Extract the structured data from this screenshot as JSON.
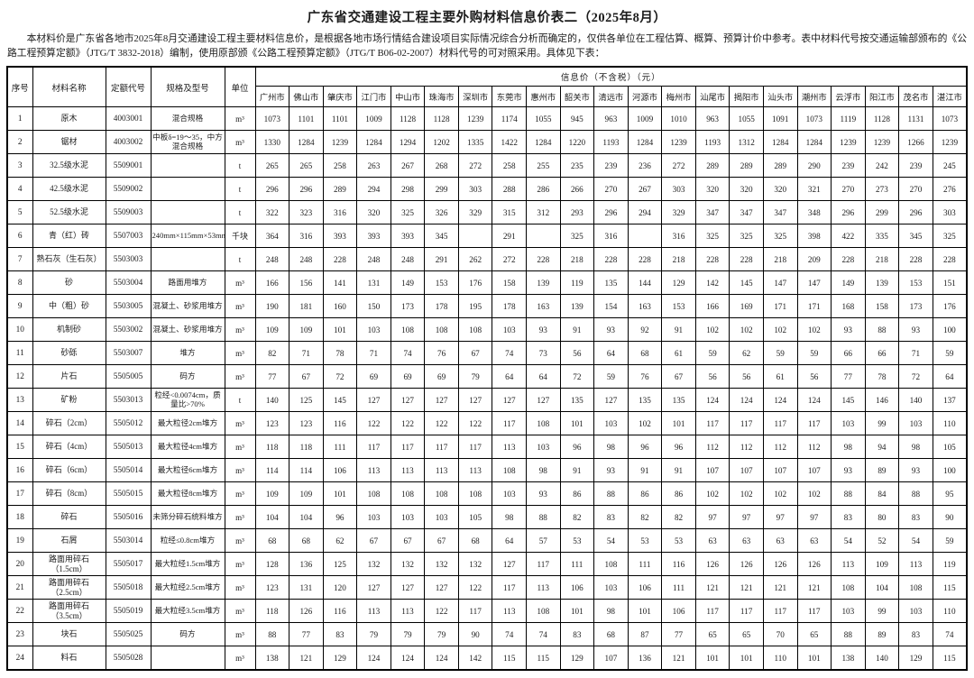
{
  "page": {
    "title": "广东省交通建设工程主要外购材料信息价表二（2025年8月）",
    "intro": "本材料价是广东省各地市2025年8月交通建设工程主要材料信息价，是根据各地市场行情结合建设项目实际情况综合分析而确定的，仅供各单位在工程估算、概算、预算计价中参考。表中材料代号按交通运输部颁布的《公路工程预算定额》（JTG/T 3832-2018）编制，使用原部颁《公路工程预算定额》（JTG/T B06-02-2007）材料代号的可对照采用。具体见下表："
  },
  "table": {
    "headers": {
      "no": "序号",
      "name": "材料名称",
      "code": "定额代号",
      "spec": "规格及型号",
      "unit": "单位",
      "price_group": "信息价（不含税）（元）"
    },
    "cities": [
      "广州市",
      "佛山市",
      "肇庆市",
      "江门市",
      "中山市",
      "珠海市",
      "深圳市",
      "东莞市",
      "惠州市",
      "韶关市",
      "清远市",
      "河源市",
      "梅州市",
      "汕尾市",
      "揭阳市",
      "汕头市",
      "潮州市",
      "云浮市",
      "阳江市",
      "茂名市",
      "湛江市"
    ],
    "rows": [
      {
        "no": "1",
        "name": "原木",
        "code": "4003001",
        "spec": "混合规格",
        "unit": "m³",
        "prices": [
          "1073",
          "1101",
          "1101",
          "1009",
          "1128",
          "1128",
          "1239",
          "1174",
          "1055",
          "945",
          "963",
          "1009",
          "1010",
          "963",
          "1055",
          "1091",
          "1073",
          "1119",
          "1128",
          "1131",
          "1073"
        ]
      },
      {
        "no": "2",
        "name": "锯材",
        "code": "4003002",
        "spec": "中板δ=19～35，中方混合规格",
        "unit": "m³",
        "prices": [
          "1330",
          "1284",
          "1239",
          "1284",
          "1294",
          "1202",
          "1335",
          "1422",
          "1284",
          "1220",
          "1193",
          "1284",
          "1239",
          "1193",
          "1312",
          "1284",
          "1284",
          "1239",
          "1239",
          "1266",
          "1239"
        ]
      },
      {
        "no": "3",
        "name": "32.5级水泥",
        "code": "5509001",
        "spec": "",
        "unit": "t",
        "prices": [
          "265",
          "265",
          "258",
          "263",
          "267",
          "268",
          "272",
          "258",
          "255",
          "235",
          "239",
          "236",
          "272",
          "289",
          "289",
          "289",
          "290",
          "239",
          "242",
          "239",
          "245"
        ]
      },
      {
        "no": "4",
        "name": "42.5级水泥",
        "code": "5509002",
        "spec": "",
        "unit": "t",
        "prices": [
          "296",
          "296",
          "289",
          "294",
          "298",
          "299",
          "303",
          "288",
          "286",
          "266",
          "270",
          "267",
          "303",
          "320",
          "320",
          "320",
          "321",
          "270",
          "273",
          "270",
          "276"
        ]
      },
      {
        "no": "5",
        "name": "52.5级水泥",
        "code": "5509003",
        "spec": "",
        "unit": "t",
        "prices": [
          "322",
          "323",
          "316",
          "320",
          "325",
          "326",
          "329",
          "315",
          "312",
          "293",
          "296",
          "294",
          "329",
          "347",
          "347",
          "347",
          "348",
          "296",
          "299",
          "296",
          "303"
        ]
      },
      {
        "no": "6",
        "name": "青（红）砖",
        "code": "5507003",
        "spec": "240mm×115mm×53mm",
        "unit": "千块",
        "prices": [
          "364",
          "316",
          "393",
          "393",
          "393",
          "345",
          "",
          "291",
          "",
          "325",
          "316",
          "",
          "316",
          "325",
          "325",
          "325",
          "398",
          "422",
          "335",
          "345",
          "325"
        ]
      },
      {
        "no": "7",
        "name": "熟石灰（生石灰）",
        "code": "5503003",
        "spec": "",
        "unit": "t",
        "prices": [
          "248",
          "248",
          "228",
          "248",
          "248",
          "291",
          "262",
          "272",
          "228",
          "218",
          "228",
          "228",
          "218",
          "228",
          "228",
          "218",
          "209",
          "228",
          "218",
          "228",
          "228"
        ]
      },
      {
        "no": "8",
        "name": "砂",
        "code": "5503004",
        "spec": "路面用堆方",
        "unit": "m³",
        "prices": [
          "166",
          "156",
          "141",
          "131",
          "149",
          "153",
          "176",
          "158",
          "139",
          "119",
          "135",
          "144",
          "129",
          "142",
          "145",
          "147",
          "147",
          "149",
          "139",
          "153",
          "151"
        ]
      },
      {
        "no": "9",
        "name": "中（粗）砂",
        "code": "5503005",
        "spec": "混凝土、砂浆用堆方",
        "unit": "m³",
        "prices": [
          "190",
          "181",
          "160",
          "150",
          "173",
          "178",
          "195",
          "178",
          "163",
          "139",
          "154",
          "163",
          "153",
          "166",
          "169",
          "171",
          "171",
          "168",
          "158",
          "173",
          "176"
        ]
      },
      {
        "no": "10",
        "name": "机制砂",
        "code": "5503002",
        "spec": "混凝土、砂浆用堆方",
        "unit": "m³",
        "prices": [
          "109",
          "109",
          "101",
          "103",
          "108",
          "108",
          "108",
          "103",
          "93",
          "91",
          "93",
          "92",
          "91",
          "102",
          "102",
          "102",
          "102",
          "93",
          "88",
          "93",
          "100"
        ]
      },
      {
        "no": "11",
        "name": "砂砾",
        "code": "5503007",
        "spec": "堆方",
        "unit": "m³",
        "prices": [
          "82",
          "71",
          "78",
          "71",
          "74",
          "76",
          "67",
          "74",
          "73",
          "56",
          "64",
          "68",
          "61",
          "59",
          "62",
          "59",
          "59",
          "66",
          "66",
          "71",
          "59"
        ]
      },
      {
        "no": "12",
        "name": "片石",
        "code": "5505005",
        "spec": "码方",
        "unit": "m³",
        "prices": [
          "77",
          "67",
          "72",
          "69",
          "69",
          "69",
          "79",
          "64",
          "64",
          "72",
          "59",
          "76",
          "67",
          "56",
          "56",
          "61",
          "56",
          "77",
          "78",
          "72",
          "64"
        ]
      },
      {
        "no": "13",
        "name": "矿粉",
        "code": "5503013",
        "spec": "粒经<0.0074cm，质量比>70%",
        "unit": "t",
        "prices": [
          "140",
          "125",
          "145",
          "127",
          "127",
          "127",
          "127",
          "127",
          "127",
          "135",
          "127",
          "135",
          "135",
          "124",
          "124",
          "124",
          "124",
          "145",
          "146",
          "140",
          "137"
        ]
      },
      {
        "no": "14",
        "name": "碎石（2cm）",
        "code": "5505012",
        "spec": "最大粒径2cm堆方",
        "unit": "m³",
        "prices": [
          "123",
          "123",
          "116",
          "122",
          "122",
          "122",
          "122",
          "117",
          "108",
          "101",
          "103",
          "102",
          "101",
          "117",
          "117",
          "117",
          "117",
          "103",
          "99",
          "103",
          "110"
        ]
      },
      {
        "no": "15",
        "name": "碎石（4cm）",
        "code": "5505013",
        "spec": "最大粒径4cm堆方",
        "unit": "m³",
        "prices": [
          "118",
          "118",
          "111",
          "117",
          "117",
          "117",
          "117",
          "113",
          "103",
          "96",
          "98",
          "96",
          "96",
          "112",
          "112",
          "112",
          "112",
          "98",
          "94",
          "98",
          "105"
        ]
      },
      {
        "no": "16",
        "name": "碎石（6cm）",
        "code": "5505014",
        "spec": "最大粒径6cm堆方",
        "unit": "m³",
        "prices": [
          "114",
          "114",
          "106",
          "113",
          "113",
          "113",
          "113",
          "108",
          "98",
          "91",
          "93",
          "91",
          "91",
          "107",
          "107",
          "107",
          "107",
          "93",
          "89",
          "93",
          "100"
        ]
      },
      {
        "no": "17",
        "name": "碎石（8cm）",
        "code": "5505015",
        "spec": "最大粒径8cm堆方",
        "unit": "m³",
        "prices": [
          "109",
          "109",
          "101",
          "108",
          "108",
          "108",
          "108",
          "103",
          "93",
          "86",
          "88",
          "86",
          "86",
          "102",
          "102",
          "102",
          "102",
          "88",
          "84",
          "88",
          "95"
        ]
      },
      {
        "no": "18",
        "name": "碎石",
        "code": "5505016",
        "spec": "未筛分碎石统料堆方",
        "unit": "m³",
        "prices": [
          "104",
          "104",
          "96",
          "103",
          "103",
          "103",
          "105",
          "98",
          "88",
          "82",
          "83",
          "82",
          "82",
          "97",
          "97",
          "97",
          "97",
          "83",
          "80",
          "83",
          "90"
        ]
      },
      {
        "no": "19",
        "name": "石屑",
        "code": "5503014",
        "spec": "粒经≤0.8cm堆方",
        "unit": "m³",
        "prices": [
          "68",
          "68",
          "62",
          "67",
          "67",
          "67",
          "68",
          "64",
          "57",
          "53",
          "54",
          "53",
          "53",
          "63",
          "63",
          "63",
          "63",
          "54",
          "52",
          "54",
          "59"
        ]
      },
      {
        "no": "20",
        "name": "路面用碎石（1.5cm）",
        "code": "5505017",
        "spec": "最大粒经1.5cm堆方",
        "unit": "m³",
        "prices": [
          "128",
          "136",
          "125",
          "132",
          "132",
          "132",
          "132",
          "127",
          "117",
          "111",
          "108",
          "111",
          "116",
          "126",
          "126",
          "126",
          "126",
          "113",
          "109",
          "113",
          "119"
        ]
      },
      {
        "no": "21",
        "name": "路面用碎石（2.5cm）",
        "code": "5505018",
        "spec": "最大粒经2.5cm堆方",
        "unit": "m³",
        "prices": [
          "123",
          "131",
          "120",
          "127",
          "127",
          "127",
          "122",
          "117",
          "113",
          "106",
          "103",
          "106",
          "111",
          "121",
          "121",
          "121",
          "121",
          "108",
          "104",
          "108",
          "115"
        ]
      },
      {
        "no": "22",
        "name": "路面用碎石（3.5cm）",
        "code": "5505019",
        "spec": "最大粒经3.5cm堆方",
        "unit": "m³",
        "prices": [
          "118",
          "126",
          "116",
          "113",
          "113",
          "122",
          "117",
          "113",
          "108",
          "101",
          "98",
          "101",
          "106",
          "117",
          "117",
          "117",
          "117",
          "103",
          "99",
          "103",
          "110"
        ]
      },
      {
        "no": "23",
        "name": "块石",
        "code": "5505025",
        "spec": "码方",
        "unit": "m³",
        "prices": [
          "88",
          "77",
          "83",
          "79",
          "79",
          "79",
          "90",
          "74",
          "74",
          "83",
          "68",
          "87",
          "77",
          "65",
          "65",
          "70",
          "65",
          "88",
          "89",
          "83",
          "74"
        ]
      },
      {
        "no": "24",
        "name": "料石",
        "code": "5505028",
        "spec": "",
        "unit": "m³",
        "prices": [
          "138",
          "121",
          "129",
          "124",
          "124",
          "124",
          "142",
          "115",
          "115",
          "129",
          "107",
          "136",
          "121",
          "101",
          "101",
          "110",
          "101",
          "138",
          "140",
          "129",
          "115"
        ]
      }
    ]
  }
}
